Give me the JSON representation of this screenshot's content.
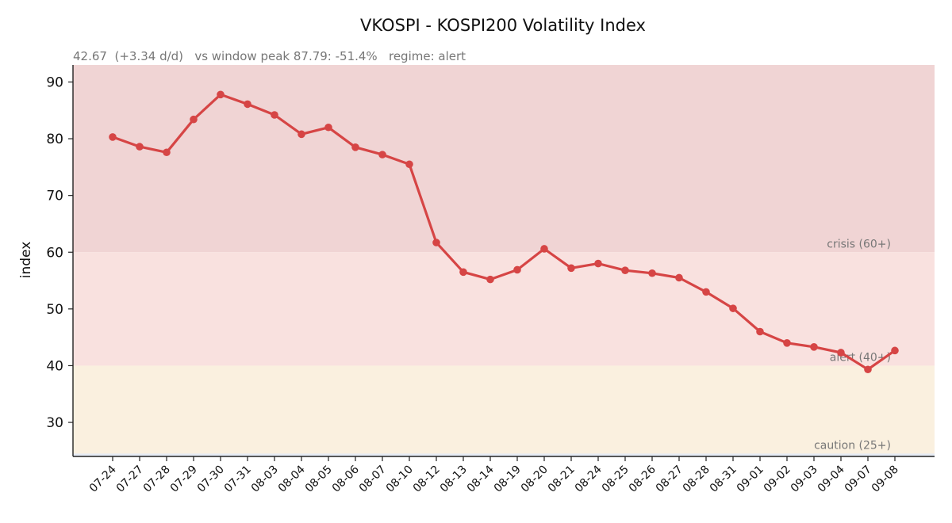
{
  "chart_data": {
    "type": "line",
    "title": "VKOSPI - KOSPI200 Volatility Index",
    "subtitle": "42.67  (+3.34 d/d)   vs window peak 87.79: -51.4%   regime: alert",
    "xlabel": "",
    "ylabel": "index",
    "ylim": [
      24,
      93
    ],
    "yticks": [
      30,
      40,
      50,
      60,
      70,
      80,
      90
    ],
    "grid": false,
    "categories": [
      "07-24",
      "07-27",
      "07-28",
      "07-29",
      "07-30",
      "07-31",
      "08-03",
      "08-04",
      "08-05",
      "08-06",
      "08-07",
      "08-10",
      "08-12",
      "08-13",
      "08-14",
      "08-19",
      "08-20",
      "08-21",
      "08-24",
      "08-25",
      "08-26",
      "08-27",
      "08-28",
      "08-31",
      "09-01",
      "09-02",
      "09-03",
      "09-04",
      "09-07",
      "09-08"
    ],
    "series": [
      {
        "values": [
          80.3,
          78.6,
          77.6,
          83.4,
          87.79,
          86.1,
          84.2,
          80.8,
          82.0,
          78.5,
          77.2,
          75.5,
          61.7,
          56.5,
          55.2,
          56.9,
          60.6,
          57.2,
          58.0,
          56.8,
          56.3,
          55.5,
          53.0,
          50.1,
          46.0,
          44.0,
          43.3,
          42.3,
          39.33,
          42.67
        ],
        "color": "#d64545"
      }
    ],
    "regimes": [
      {
        "label": "crisis (60+)",
        "from": 60,
        "to": 93,
        "color": "#f0d4d4"
      },
      {
        "label": "alert (40+)",
        "from": 40,
        "to": 60,
        "color": "#f9e1df"
      },
      {
        "label": "caution (25+)",
        "from": 24.5,
        "to": 40,
        "color": "#faf0df"
      },
      {
        "label": "",
        "from": 24,
        "to": 24.5,
        "color": "#e6ecf5"
      }
    ]
  }
}
